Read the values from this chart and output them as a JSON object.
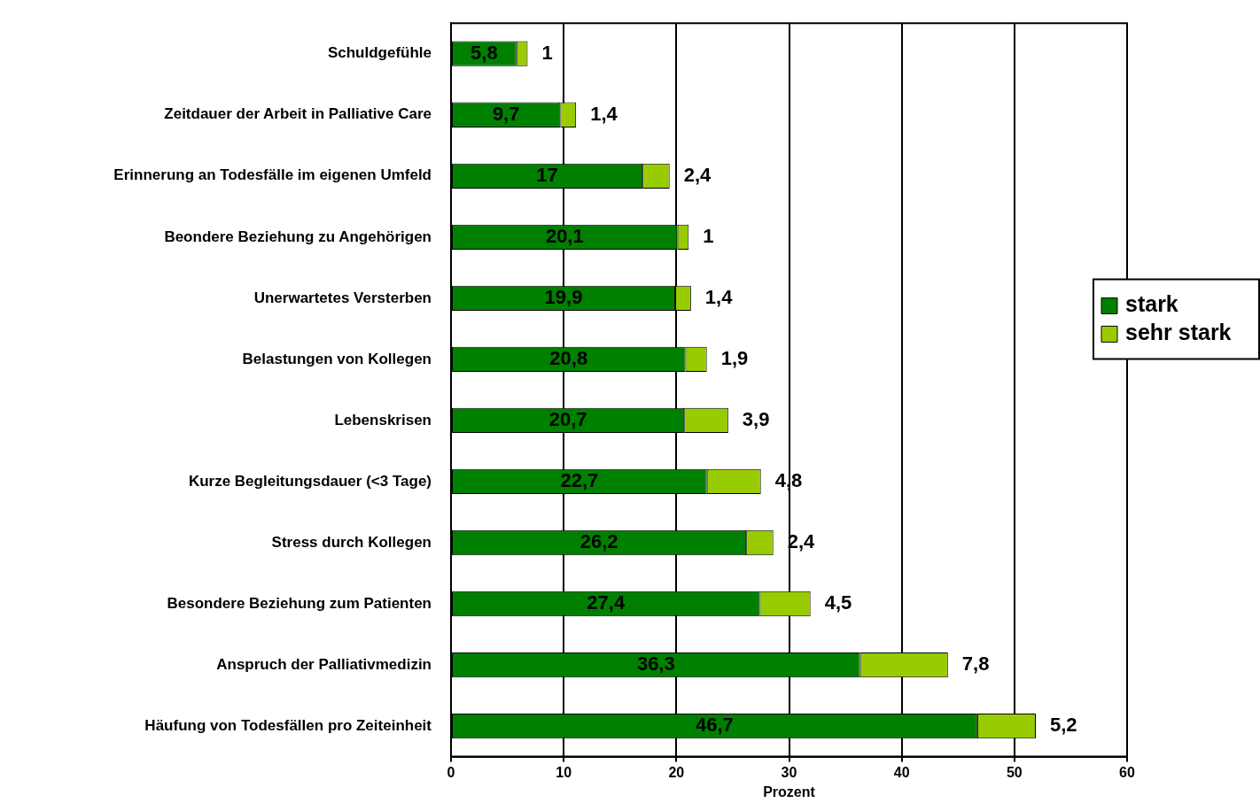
{
  "chart_data": {
    "type": "bar",
    "orientation": "horizontal",
    "stacked": true,
    "xlabel": "Prozent",
    "categories": [
      "Schuldgefühle",
      "Zeitdauer der Arbeit in Palliative Care",
      "Erinnerung an Todesfälle im eigenen Umfeld",
      "Beondere Beziehung zu Angehörigen",
      "Unerwartetes Versterben",
      "Belastungen von Kollegen",
      "Lebenskrisen",
      "Kurze Begleitungsdauer (<3 Tage)",
      "Stress durch Kollegen",
      "Besondere Beziehung zum Patienten",
      "Anspruch der Palliativmedizin",
      "Häufung von Todesfällen pro Zeiteinheit"
    ],
    "series": [
      {
        "name": "stark",
        "color": "#008000",
        "values": [
          5.8,
          9.7,
          17,
          20.1,
          19.9,
          20.8,
          20.7,
          22.7,
          26.2,
          27.4,
          36.3,
          46.7
        ],
        "value_labels": [
          "5,8",
          "9,7",
          "17",
          "20,1",
          "19,9",
          "20,8",
          "20,7",
          "22,7",
          "26,2",
          "27,4",
          "36,3",
          "46,7"
        ]
      },
      {
        "name": "sehr stark",
        "color": "#99cc00",
        "values": [
          1,
          1.4,
          2.4,
          1,
          1.4,
          1.9,
          3.9,
          4.8,
          2.4,
          4.5,
          7.8,
          5.2
        ],
        "value_labels": [
          "1",
          "1,4",
          "2,4",
          "1",
          "1,4",
          "1,9",
          "3,9",
          "4,8",
          "2,4",
          "4,5",
          "7,8",
          "5,2"
        ]
      }
    ],
    "xlim": [
      0,
      60
    ],
    "xticks": [
      0,
      10,
      20,
      30,
      40,
      50,
      60
    ],
    "grid": "x",
    "legend": "right",
    "data_labels": true
  }
}
